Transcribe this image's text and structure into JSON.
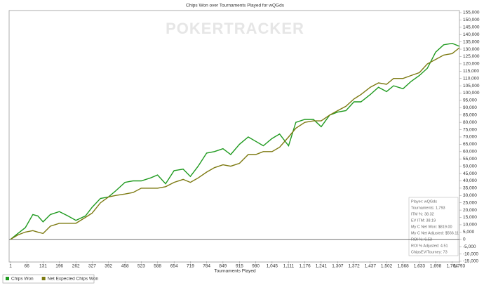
{
  "chart_data": {
    "type": "line",
    "title": "Chips Won over Tournaments Played for wQGds",
    "watermark": "POKERTRACKER",
    "xlabel": "Tournaments Played",
    "x": [
      1,
      30,
      60,
      90,
      110,
      131,
      160,
      196,
      230,
      262,
      300,
      327,
      360,
      392,
      420,
      458,
      490,
      523,
      560,
      588,
      620,
      654,
      690,
      719,
      750,
      784,
      815,
      849,
      880,
      915,
      950,
      980,
      1010,
      1045,
      1075,
      1111,
      1140,
      1176,
      1210,
      1241,
      1275,
      1307,
      1340,
      1372,
      1400,
      1437,
      1470,
      1502,
      1530,
      1568,
      1600,
      1633,
      1665,
      1698,
      1730,
      1764,
      1793
    ],
    "series": [
      {
        "name": "Chips Won",
        "color": "#1f9a1f",
        "values": [
          0,
          4000,
          8000,
          17000,
          16000,
          12000,
          17000,
          19000,
          16000,
          13000,
          16000,
          22000,
          28000,
          29000,
          33000,
          39000,
          40000,
          40000,
          42000,
          44000,
          38000,
          47000,
          48000,
          43000,
          50000,
          59000,
          60000,
          62000,
          58000,
          65000,
          70000,
          67000,
          64000,
          69000,
          72000,
          64000,
          80000,
          82000,
          82000,
          77000,
          85000,
          87000,
          88000,
          94000,
          94000,
          99000,
          104000,
          101000,
          105000,
          103000,
          108000,
          112000,
          117000,
          128000,
          133000,
          134000,
          132000
        ]
      },
      {
        "name": "Net Expected Chips Won",
        "color": "#7d7a12",
        "values": [
          0,
          3000,
          5000,
          6000,
          5000,
          4000,
          9000,
          11000,
          11000,
          11000,
          15000,
          18000,
          25000,
          29000,
          30000,
          31000,
          32000,
          35000,
          35000,
          35000,
          36000,
          39000,
          41000,
          39000,
          42000,
          46000,
          49000,
          51000,
          50000,
          52000,
          58000,
          58000,
          60000,
          60000,
          63000,
          70000,
          76000,
          80000,
          81000,
          81000,
          85000,
          88000,
          91000,
          96000,
          99000,
          104000,
          107000,
          106000,
          110000,
          110000,
          112000,
          114000,
          120000,
          123000,
          126000,
          127000,
          131000
        ]
      }
    ],
    "xlim": [
      1,
      1793
    ],
    "xticks": [
      1,
      66,
      131,
      196,
      262,
      327,
      392,
      458,
      523,
      588,
      654,
      719,
      784,
      849,
      915,
      980,
      {
        "value": 1045,
        "label": "1,045"
      },
      {
        "value": 1111,
        "label": "1,111"
      },
      {
        "value": 1176,
        "label": "1,176"
      },
      {
        "value": 1241,
        "label": "1,241"
      },
      {
        "value": 1307,
        "label": "1,307"
      },
      {
        "value": 1372,
        "label": "1,372"
      },
      {
        "value": 1437,
        "label": "1,437"
      },
      {
        "value": 1502,
        "label": "1,502"
      },
      {
        "value": 1568,
        "label": "1,568"
      },
      {
        "value": 1633,
        "label": "1,633"
      },
      {
        "value": 1698,
        "label": "1,698"
      },
      {
        "value": 1764,
        "label": "1,764"
      },
      {
        "value": 1793,
        "label": "1,793"
      }
    ],
    "ylim": [
      -15000,
      155000
    ],
    "yticks": [
      {
        "value": -15000,
        "label": "-15,000"
      },
      {
        "value": -10000,
        "label": "-10,000"
      },
      {
        "value": -5000,
        "label": "-5,000"
      },
      0,
      {
        "value": 5000,
        "label": "5,000"
      },
      {
        "value": 10000,
        "label": "10,000"
      },
      {
        "value": 15000,
        "label": "15,000"
      },
      {
        "value": 20000,
        "label": "20,000"
      },
      {
        "value": 25000,
        "label": "25,000"
      },
      {
        "value": 30000,
        "label": "30,000"
      },
      {
        "value": 35000,
        "label": "35,000"
      },
      {
        "value": 40000,
        "label": "40,000"
      },
      {
        "value": 45000,
        "label": "45,000"
      },
      {
        "value": 50000,
        "label": "50,000"
      },
      {
        "value": 55000,
        "label": "55,000"
      },
      {
        "value": 60000,
        "label": "60,000"
      },
      {
        "value": 65000,
        "label": "65,000"
      },
      {
        "value": 70000,
        "label": "70,000"
      },
      {
        "value": 75000,
        "label": "75,000"
      },
      {
        "value": 80000,
        "label": "80,000"
      },
      {
        "value": 85000,
        "label": "85,000"
      },
      {
        "value": 90000,
        "label": "90,000"
      },
      {
        "value": 95000,
        "label": "95,000"
      },
      {
        "value": 100000,
        "label": "100,000"
      },
      {
        "value": 105000,
        "label": "105,000"
      },
      {
        "value": 110000,
        "label": "110,000"
      },
      {
        "value": 115000,
        "label": "115,000"
      },
      {
        "value": 120000,
        "label": "120,000"
      },
      {
        "value": 125000,
        "label": "125,000"
      },
      {
        "value": 130000,
        "label": "130,000"
      },
      {
        "value": 135000,
        "label": "135,000"
      },
      {
        "value": 140000,
        "label": "140,000"
      },
      {
        "value": 145000,
        "label": "145,000"
      },
      {
        "value": 150000,
        "label": "150,000"
      },
      {
        "value": 155000,
        "label": "155,000"
      }
    ],
    "stats": [
      "Player: wQGds",
      "Tournaments: 1,793",
      "ITM %: 38.32",
      "EV ITM: 38.19",
      "My C Net Won: $819.00",
      "My C Net Adjusted: $566.11",
      "ROI %: 6.53",
      "ROI % Adjusted: 4.51",
      "ChipsEV/Tourney: 73"
    ]
  }
}
